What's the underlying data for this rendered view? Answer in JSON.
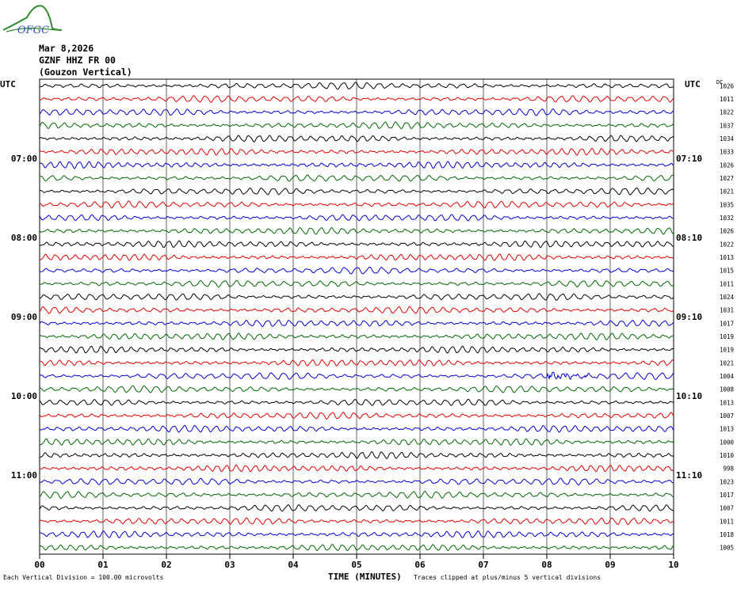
{
  "header": {
    "logo_text": "OFGC",
    "date": "Mar 8,2026",
    "station": "GZNF HHZ FR 00",
    "site": "(Gouzon Vertical)"
  },
  "chart_data": {
    "type": "line",
    "subtype": "helicorder",
    "xlabel": "TIME (MINUTES)",
    "x_ticks": [
      "00",
      "01",
      "02",
      "03",
      "04",
      "05",
      "06",
      "07",
      "08",
      "09",
      "10"
    ],
    "xlim": [
      0,
      10
    ],
    "left_axis_label": "UTC",
    "right_axis_label": "UTC",
    "corner_label": "DC",
    "left_time_labels": [
      {
        "row": 6,
        "text": "07:00"
      },
      {
        "row": 12,
        "text": "08:00"
      },
      {
        "row": 18,
        "text": "09:00"
      },
      {
        "row": 24,
        "text": "10:00"
      },
      {
        "row": 30,
        "text": "11:00"
      }
    ],
    "right_time_labels": [
      {
        "row": 6,
        "text": "07:10"
      },
      {
        "row": 12,
        "text": "08:10"
      },
      {
        "row": 18,
        "text": "09:10"
      },
      {
        "row": 24,
        "text": "10:10"
      },
      {
        "row": 30,
        "text": "11:10"
      }
    ],
    "trace_colors": [
      "#000000",
      "#dd0000",
      "#0000cc",
      "#006600"
    ],
    "dc_offsets": [
      1026,
      1011,
      1022,
      1037,
      1034,
      1033,
      1026,
      1027,
      1021,
      1035,
      1032,
      1026,
      1022,
      1013,
      1015,
      1011,
      1024,
      1031,
      1017,
      1019,
      1019,
      1021,
      1004,
      1008,
      1013,
      1007,
      1013,
      1000,
      1010,
      998,
      1023,
      1017,
      1007,
      1011,
      1018,
      1005
    ],
    "events": [
      {
        "row": 22,
        "x_minutes": [
          8.0,
          8.8
        ],
        "note": "local burst"
      }
    ],
    "grid": "vertical-lines-each-minute"
  },
  "footer": {
    "left": "Each Vertical Division =  100.00 microvolts",
    "middle": "TIME (MINUTES)",
    "right": "Traces clipped at plus/minus 5 vertical divisions"
  }
}
